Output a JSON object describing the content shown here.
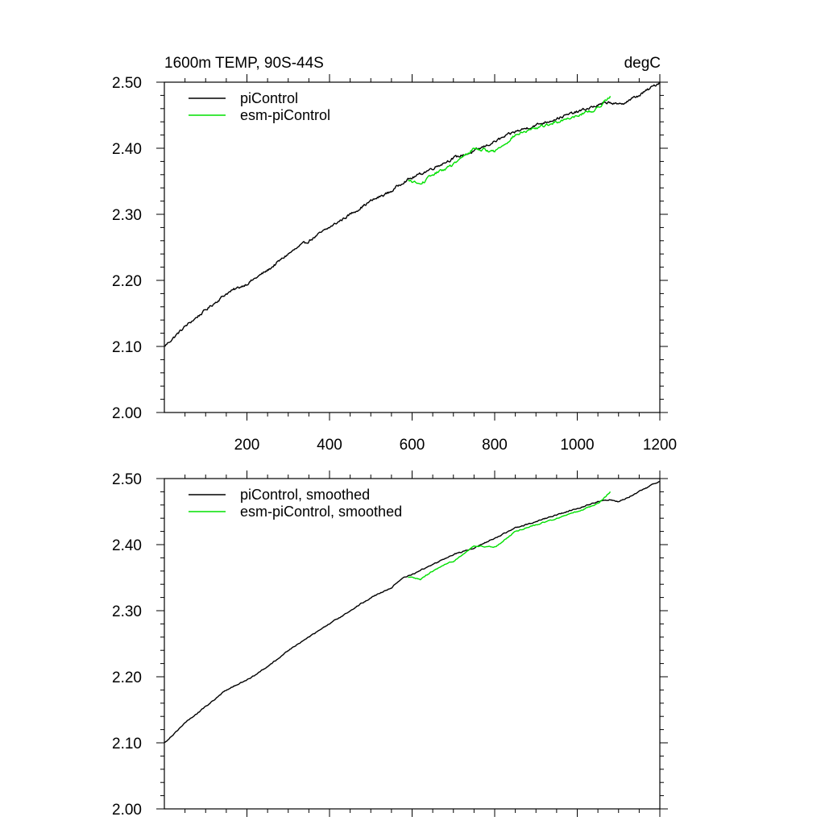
{
  "chart_data": [
    {
      "type": "line",
      "title": "1600m TEMP, 90S-44S",
      "units": "degC",
      "xlabel": "",
      "ylabel": "",
      "xlim": [
        0,
        1200
      ],
      "ylim": [
        2.0,
        2.5
      ],
      "xticks": [
        "200",
        "400",
        "600",
        "800",
        "1000",
        "1200"
      ],
      "yticks": [
        "2.00",
        "2.10",
        "2.20",
        "2.30",
        "2.40",
        "2.50"
      ],
      "legend_position": "top-left",
      "series": [
        {
          "name": "piControl",
          "color": "#000000",
          "x": [
            0,
            50,
            100,
            150,
            200,
            250,
            300,
            350,
            400,
            450,
            500,
            550,
            580,
            600,
            650,
            700,
            750,
            800,
            850,
            900,
            950,
            1000,
            1050,
            1080,
            1100,
            1150,
            1200
          ],
          "y": [
            2.1,
            2.13,
            2.155,
            2.18,
            2.195,
            2.215,
            2.24,
            2.26,
            2.28,
            2.3,
            2.32,
            2.335,
            2.35,
            2.355,
            2.37,
            2.385,
            2.395,
            2.41,
            2.425,
            2.435,
            2.445,
            2.455,
            2.465,
            2.47,
            2.465,
            2.48,
            2.5
          ]
        },
        {
          "name": "esm-piControl",
          "color": "#00e000",
          "x": [
            590,
            600,
            620,
            650,
            700,
            750,
            800,
            820,
            850,
            900,
            950,
            1000,
            1050,
            1080
          ],
          "y": [
            2.35,
            2.35,
            2.345,
            2.36,
            2.375,
            2.4,
            2.395,
            2.405,
            2.42,
            2.43,
            2.44,
            2.45,
            2.46,
            2.48
          ]
        }
      ]
    },
    {
      "type": "line",
      "title": "",
      "xlabel": "",
      "ylabel": "",
      "xlim": [
        0,
        1200
      ],
      "ylim": [
        2.0,
        2.5
      ],
      "yticks": [
        "2.00",
        "2.10",
        "2.20",
        "2.30",
        "2.40",
        "2.50"
      ],
      "legend_position": "top-left",
      "series": [
        {
          "name": "piControl, smoothed",
          "color": "#000000",
          "x": [
            0,
            50,
            100,
            150,
            200,
            250,
            300,
            350,
            400,
            450,
            500,
            550,
            580,
            600,
            650,
            700,
            750,
            800,
            850,
            900,
            950,
            1000,
            1050,
            1080,
            1100,
            1150,
            1200
          ],
          "y": [
            2.1,
            2.13,
            2.155,
            2.18,
            2.195,
            2.215,
            2.24,
            2.26,
            2.28,
            2.3,
            2.32,
            2.335,
            2.35,
            2.355,
            2.37,
            2.385,
            2.395,
            2.41,
            2.425,
            2.435,
            2.445,
            2.455,
            2.465,
            2.468,
            2.465,
            2.48,
            2.497
          ]
        },
        {
          "name": "esm-piControl, smoothed",
          "color": "#00e000",
          "x": [
            590,
            600,
            620,
            650,
            700,
            750,
            800,
            820,
            850,
            900,
            950,
            1000,
            1050,
            1080
          ],
          "y": [
            2.35,
            2.35,
            2.347,
            2.36,
            2.375,
            2.398,
            2.396,
            2.405,
            2.42,
            2.43,
            2.44,
            2.45,
            2.462,
            2.48
          ]
        }
      ]
    }
  ]
}
